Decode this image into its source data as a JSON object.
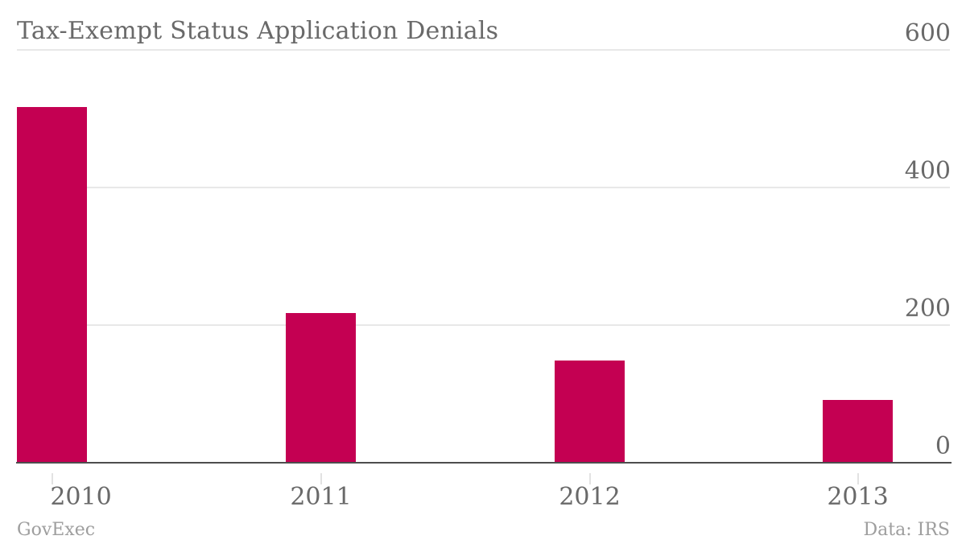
{
  "title": "Tax-Exempt Status Application Denials",
  "footer": {
    "left": "GovExec",
    "right": "Data: IRS"
  },
  "colors": {
    "bar": "#c40052",
    "text": "#696969",
    "gridline": "#e8e8e8",
    "axis_line": "#4d4d4d",
    "footer_text": "#9e9e9e",
    "background": "#ffffff"
  },
  "chart_data": {
    "type": "bar",
    "title": "Tax-Exempt Status Application Denials",
    "categories": [
      "2010",
      "2011",
      "2012",
      "2013"
    ],
    "values": [
      517,
      217,
      149,
      91
    ],
    "xlabel": "",
    "ylabel": "",
    "ylim": [
      0,
      600
    ],
    "yticks": [
      600,
      400,
      200,
      0
    ],
    "ytick_side": "right",
    "grid": true,
    "legend": false,
    "credit": "GovExec",
    "source": "Data: IRS"
  }
}
